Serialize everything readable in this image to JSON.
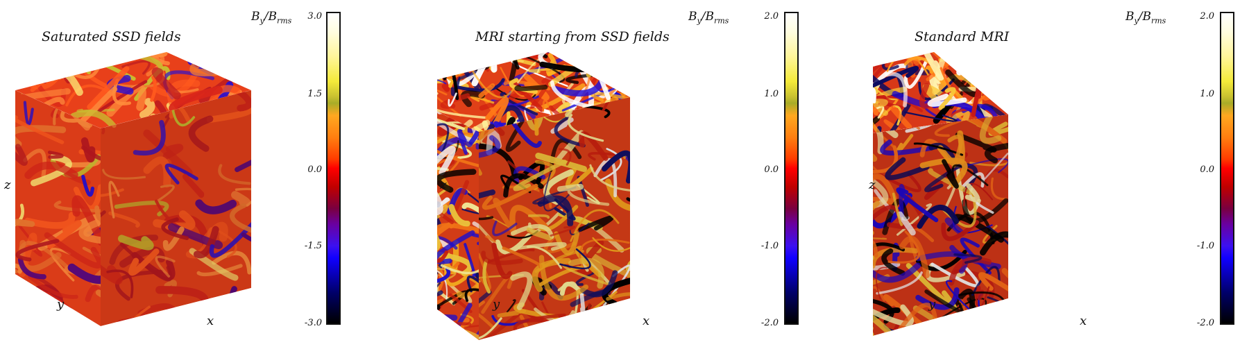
{
  "panels": [
    {
      "title": "Saturated SSD fields",
      "colorbar": {
        "label_main": "B",
        "label_sub1": "y",
        "label_sep": "/B",
        "label_sub2": "rms",
        "ticks": [
          "3.0",
          "1.5",
          "0.0",
          "-1.5",
          "-3.0"
        ]
      },
      "axes": {
        "x": "x",
        "y": "y",
        "z": "z"
      },
      "texture": {
        "base": "#e8401a",
        "palette": [
          "#ff5a1e",
          "#d9261a",
          "#f07830",
          "#b81820",
          "#ff8c3c"
        ],
        "accents": [
          "#2a10d0",
          "#c8c030",
          "#fff07a",
          "#5a0880"
        ]
      }
    },
    {
      "title": "MRI starting from SSD fields",
      "colorbar": {
        "label_main": "B",
        "label_sub1": "y",
        "label_sep": "/B",
        "label_sub2": "rms",
        "ticks": [
          "2.0",
          "1.0",
          "0.0",
          "-1.0",
          "-2.0"
        ]
      },
      "axes": {
        "x": "x",
        "y": "y",
        "z": "z"
      },
      "texture": {
        "base": "#e04018",
        "palette": [
          "#ff7a18",
          "#f9d040",
          "#fff6a0",
          "#d02010",
          "#ffb020"
        ],
        "accents": [
          "#2010d8",
          "#10106a",
          "#000000",
          "#ffffff"
        ]
      }
    },
    {
      "title": "Standard MRI",
      "colorbar": {
        "label_main": "B",
        "label_sub1": "y",
        "label_sep": "/B",
        "label_sub2": "rms",
        "ticks": [
          "2.0",
          "1.0",
          "0.0",
          "-1.0",
          "-2.0"
        ]
      },
      "axes": {
        "x": "x",
        "y": "y",
        "z": "z"
      },
      "texture": {
        "base": "#d83818",
        "palette": [
          "#ff7018",
          "#f8c83a",
          "#fff4b0",
          "#c81a14",
          "#ffa020"
        ],
        "accents": [
          "#2008d0",
          "#0a0a60",
          "#000000",
          "#ffffff"
        ]
      }
    }
  ]
}
